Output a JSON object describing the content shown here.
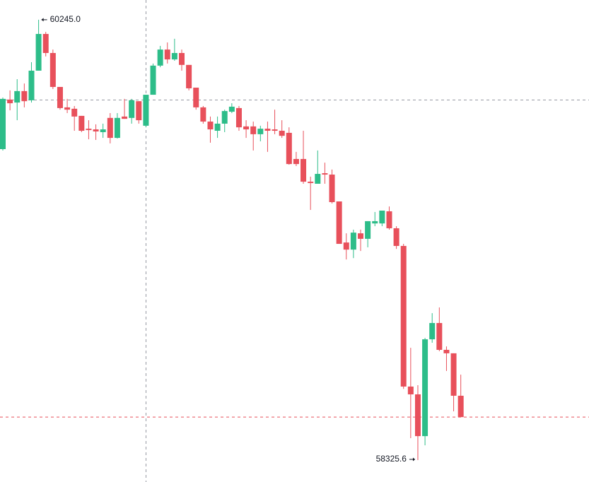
{
  "chart_data": {
    "type": "candlestick",
    "up_color": "#2dbd89",
    "down_color": "#e8505b",
    "ylim": [
      58230,
      60331
    ],
    "open": [
      59681,
      59897,
      59884,
      59934,
      59894,
      60023,
      60183,
      60100,
      59952,
      59863,
      59857,
      59826,
      59770,
      59767,
      59755,
      59817,
      59730,
      59823,
      59817,
      59890,
      59783,
      59918,
      60045,
      60115,
      60072,
      60100,
      60048,
      59949,
      59863,
      59801,
      59761,
      59792,
      59844,
      59860,
      59780,
      59780,
      59746,
      59770,
      59767,
      59761,
      59752,
      59638,
      59638,
      59539,
      59530,
      59576,
      59570,
      59453,
      59274,
      59243,
      59314,
      59290,
      59357,
      59357,
      59410,
      59336,
      59259,
      58646,
      58612,
      58430,
      58852,
      58923,
      58806,
      58791,
      58606
    ],
    "high": [
      59906,
      59937,
      59986,
      59967,
      60060,
      60245.0,
      60192,
      60115,
      59952,
      59900,
      59869,
      59826,
      59807,
      59789,
      59792,
      59838,
      59838,
      59900,
      59900,
      59890,
      59918,
      60054,
      60131,
      60146,
      60162,
      60115,
      60048,
      59949,
      59869,
      59823,
      59823,
      59853,
      59881,
      59869,
      59807,
      59801,
      59783,
      59801,
      59853,
      59807,
      59776,
      59669,
      59761,
      59561,
      59675,
      59622,
      59592,
      59453,
      59314,
      59330,
      59330,
      59367,
      59407,
      59413,
      59431,
      59345,
      59268,
      58815,
      58652,
      58858,
      58966,
      58991,
      58821,
      58791,
      58698
    ],
    "low": [
      59675,
      59850,
      59807,
      59863,
      59884,
      60023,
      60085,
      59943,
      59853,
      59838,
      59761,
      59755,
      59724,
      59721,
      59730,
      59706,
      59727,
      59813,
      59792,
      59792,
      59776,
      59918,
      60038,
      60054,
      60066,
      60023,
      59937,
      59853,
      59792,
      59709,
      59730,
      59755,
      59838,
      59761,
      59730,
      59675,
      59715,
      59669,
      59746,
      59730,
      59613,
      59607,
      59530,
      59416,
      59530,
      59530,
      59444,
      59268,
      59200,
      59206,
      59237,
      59253,
      59345,
      59345,
      59330,
      59246,
      58636,
      58421,
      58325.6,
      58390,
      58837,
      58800,
      58714,
      58538,
      58513
    ],
    "close": [
      59900,
      59881,
      59934,
      59890,
      60023,
      60183,
      60100,
      59952,
      59860,
      59853,
      59823,
      59761,
      59764,
      59758,
      59767,
      59730,
      59817,
      59813,
      59894,
      59807,
      59918,
      60045,
      60115,
      60072,
      60100,
      60048,
      59946,
      59863,
      59801,
      59767,
      59792,
      59847,
      59866,
      59776,
      59767,
      59746,
      59770,
      59761,
      59761,
      59739,
      59616,
      59616,
      59539,
      59533,
      59573,
      59570,
      59450,
      59268,
      59243,
      59317,
      59290,
      59367,
      59367,
      59413,
      59336,
      59259,
      58646,
      58612,
      58430,
      58852,
      58923,
      58806,
      58791,
      58606,
      58513
    ],
    "annotations": [
      {
        "label": "60245.0",
        "value": 60245.0
      },
      {
        "label": "58325.6",
        "value": 58325.6
      }
    ]
  }
}
